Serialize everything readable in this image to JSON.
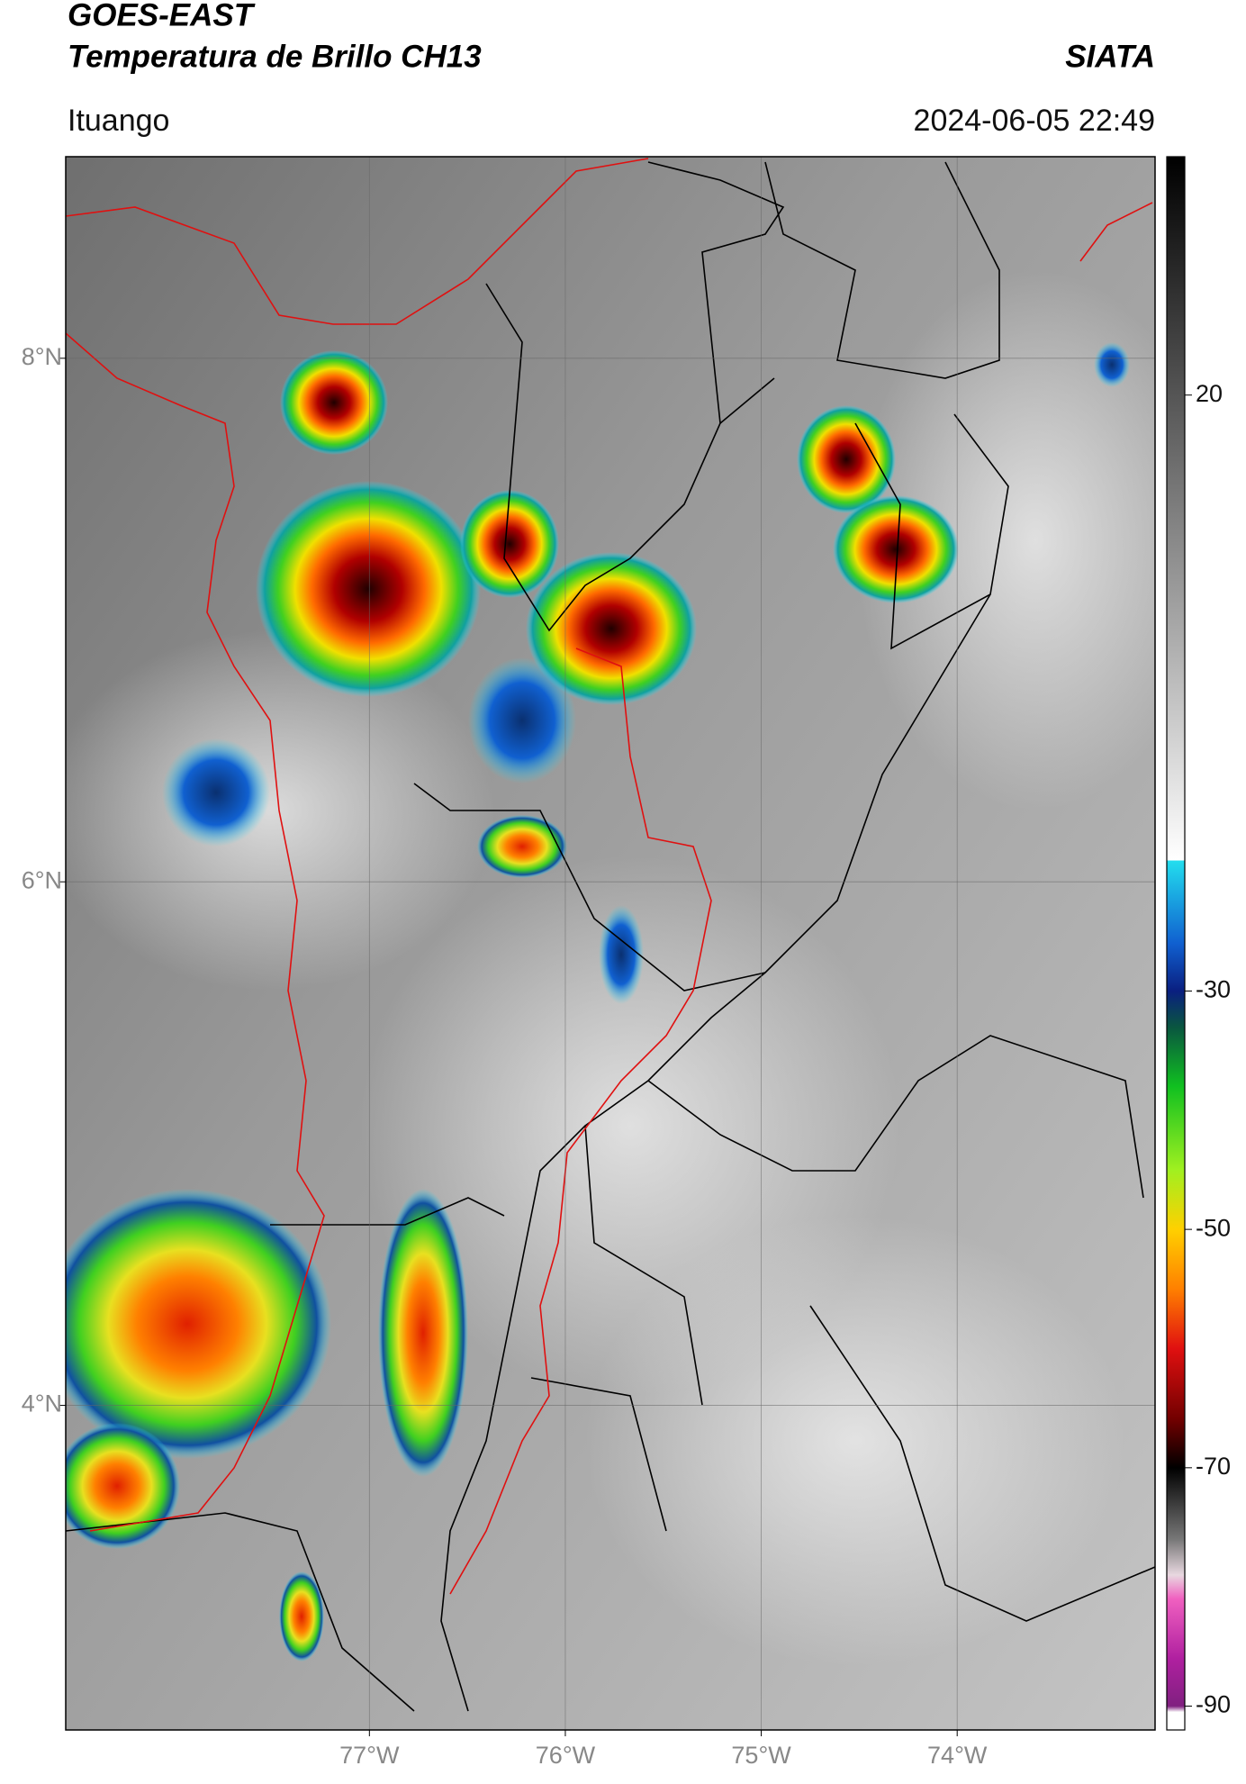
{
  "header": {
    "title": "GOES-EAST",
    "subtitle": "Temperatura de Brillo CH13",
    "source": "SIATA",
    "location": "Ituango",
    "datetime": "2024-06-05 22:49"
  },
  "map": {
    "xlim": [
      -78.55,
      -72.99
    ],
    "ylim": [
      2.76,
      8.77
    ],
    "xticks": [
      {
        "value": -77,
        "label": "77°W"
      },
      {
        "value": -76,
        "label": "76°W"
      },
      {
        "value": -75,
        "label": "75°W"
      },
      {
        "value": -74,
        "label": "74°W"
      }
    ],
    "yticks": [
      {
        "value": 4,
        "label": "4°N"
      },
      {
        "value": 6,
        "label": "6°N"
      },
      {
        "value": 8,
        "label": "8°N"
      }
    ],
    "grid": true
  },
  "colorbar": {
    "lim": [
      -92,
      40
    ],
    "ticks": [
      -90,
      -70,
      -50,
      -30,
      20
    ],
    "stops": [
      {
        "value": 40,
        "color": "#000000"
      },
      {
        "value": 20,
        "color": "#555555"
      },
      {
        "value": 0,
        "color": "#aaaaaa"
      },
      {
        "value": -19,
        "color": "#ffffff"
      },
      {
        "value": -19.1,
        "color": "#22ddee"
      },
      {
        "value": -26,
        "color": "#1060d0"
      },
      {
        "value": -30,
        "color": "#0a1f80"
      },
      {
        "value": -33,
        "color": "#0a5540"
      },
      {
        "value": -38,
        "color": "#10c020"
      },
      {
        "value": -45,
        "color": "#a0f020"
      },
      {
        "value": -50,
        "color": "#ffd000"
      },
      {
        "value": -55,
        "color": "#ff8000"
      },
      {
        "value": -60,
        "color": "#e01010"
      },
      {
        "value": -66,
        "color": "#700000"
      },
      {
        "value": -70,
        "color": "#000000"
      },
      {
        "value": -76,
        "color": "#777777"
      },
      {
        "value": -79,
        "color": "#e8d8e0"
      },
      {
        "value": -81,
        "color": "#f060c0"
      },
      {
        "value": -86,
        "color": "#b020a0"
      },
      {
        "value": -90,
        "color": "#802080"
      },
      {
        "value": -90.5,
        "color": "#ffffff"
      },
      {
        "value": -92,
        "color": "#ffffff"
      }
    ]
  }
}
